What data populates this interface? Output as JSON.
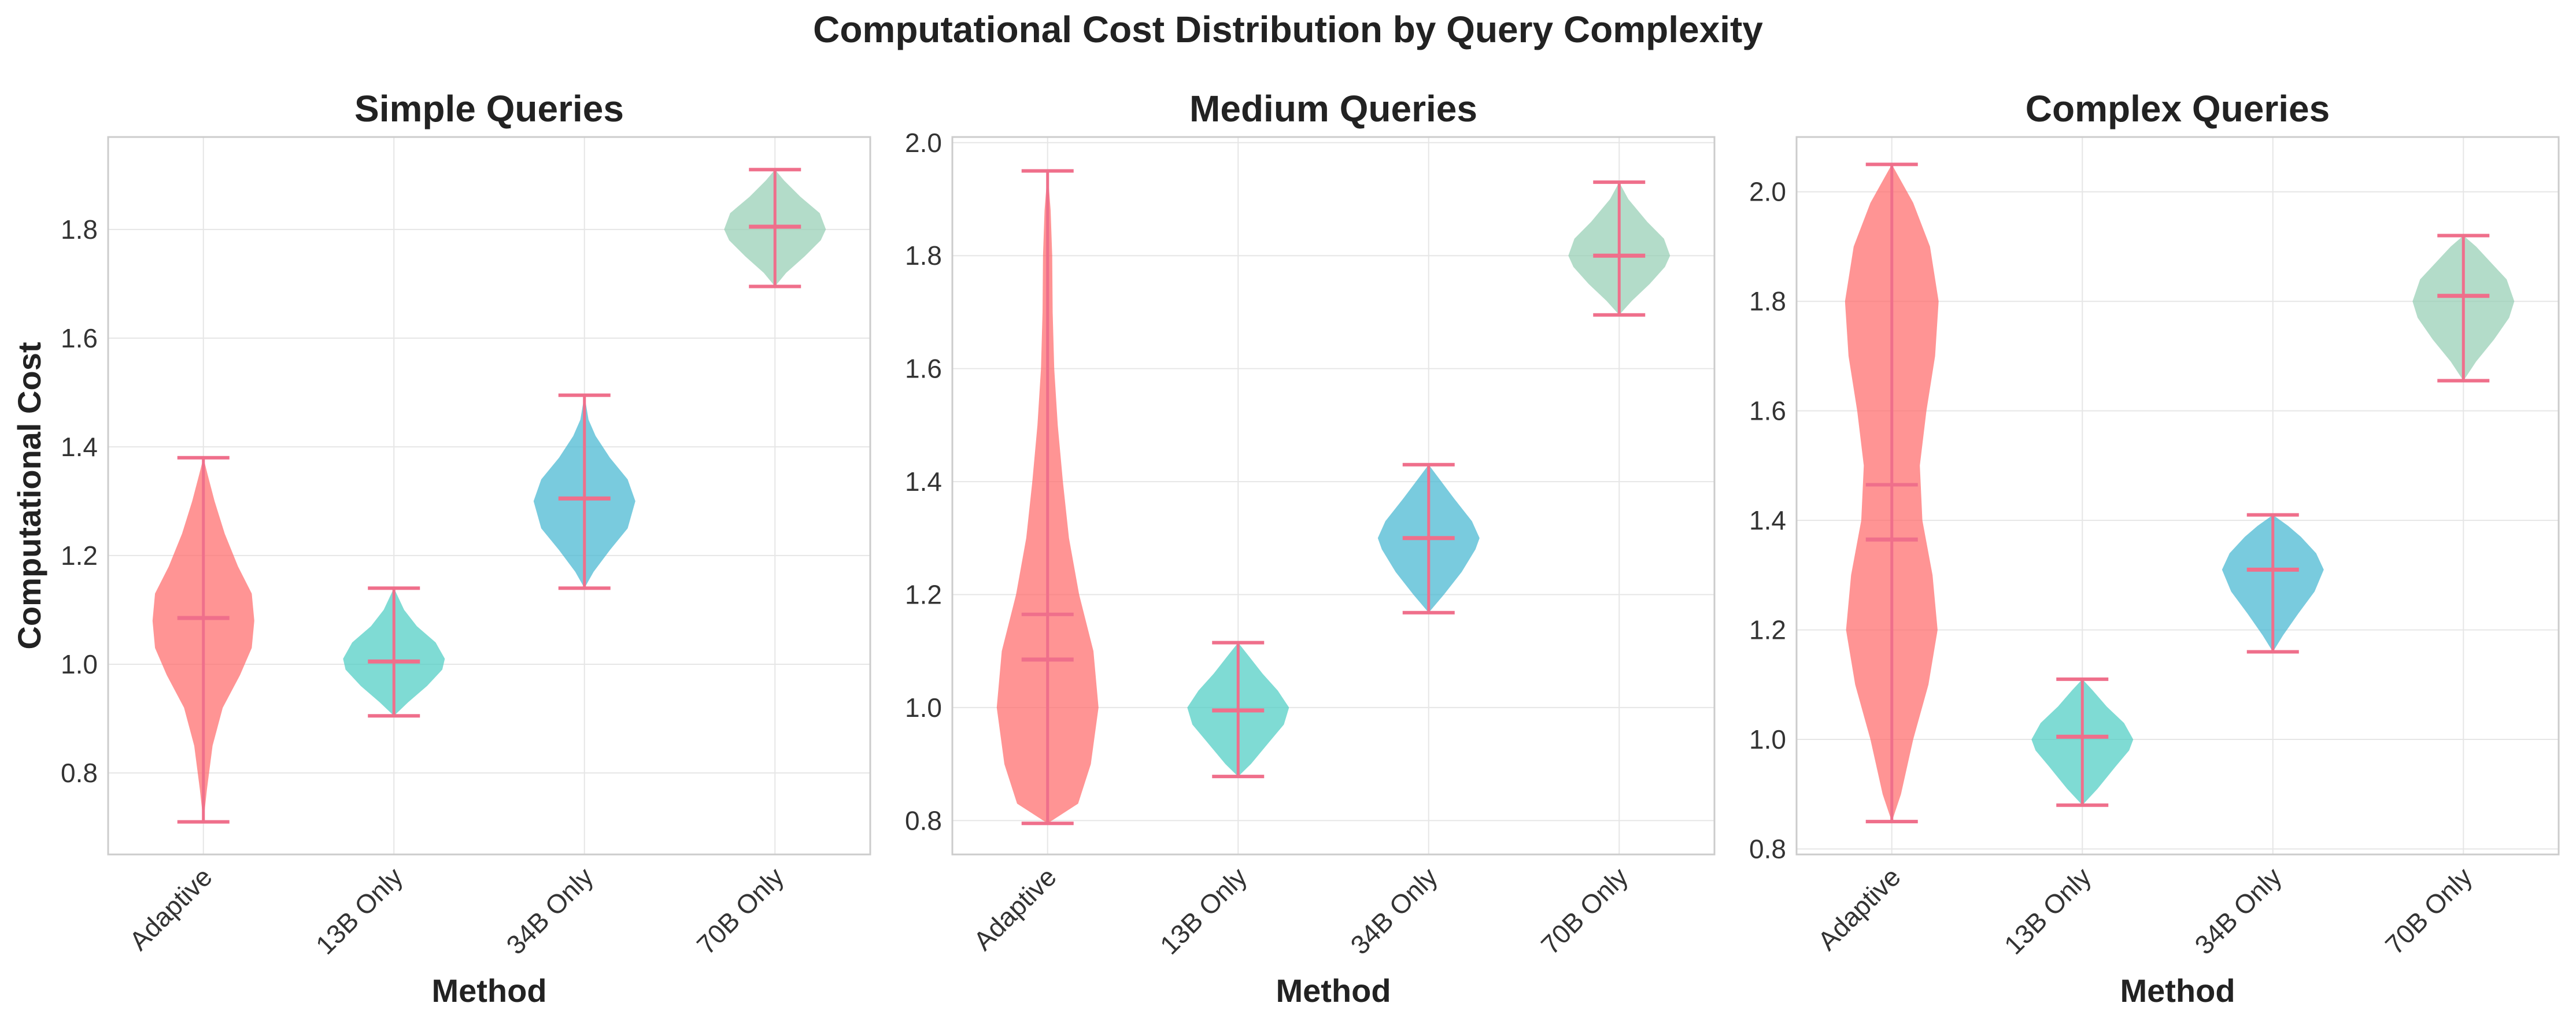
{
  "figure_title": "Computational Cost Distribution by Query Complexity",
  "colors": {
    "Adaptive": "#ff6b6b",
    "13B Only": "#4ecdc4",
    "34B Only": "#45b7d1",
    "70B Only": "#96ceb4",
    "stats_lines": "#ef6f8b",
    "grid": "#e6e6e6",
    "axes_frame": "#cccccc"
  },
  "chart_data": [
    {
      "type": "violin",
      "title": "Simple Queries",
      "xlabel": "Method",
      "ylabel": "Computational Cost",
      "categories": [
        "Adaptive",
        "13B Only",
        "34B Only",
        "70B Only"
      ],
      "ylim": [
        0.65,
        1.97
      ],
      "yticks": [
        0.8,
        1.0,
        1.2,
        1.4,
        1.6,
        1.8
      ],
      "ytick_labels": [
        "0.8",
        "1.0",
        "1.2",
        "1.4",
        "1.6",
        "1.8"
      ],
      "grid": true,
      "show_medians": true,
      "show_means": false,
      "violins": [
        {
          "category": "Adaptive",
          "min": 0.71,
          "max": 1.38,
          "median": 1.085,
          "density": [
            [
              0.71,
              0.0
            ],
            [
              0.77,
              0.07
            ],
            [
              0.85,
              0.18
            ],
            [
              0.92,
              0.38
            ],
            [
              0.98,
              0.72
            ],
            [
              1.03,
              0.95
            ],
            [
              1.08,
              1.0
            ],
            [
              1.13,
              0.95
            ],
            [
              1.18,
              0.68
            ],
            [
              1.24,
              0.42
            ],
            [
              1.3,
              0.22
            ],
            [
              1.35,
              0.08
            ],
            [
              1.38,
              0.0
            ]
          ]
        },
        {
          "category": "13B Only",
          "min": 0.905,
          "max": 1.14,
          "median": 1.005,
          "density": [
            [
              0.905,
              0.0
            ],
            [
              0.93,
              0.28
            ],
            [
              0.96,
              0.65
            ],
            [
              0.99,
              0.95
            ],
            [
              1.01,
              1.0
            ],
            [
              1.04,
              0.82
            ],
            [
              1.07,
              0.45
            ],
            [
              1.1,
              0.2
            ],
            [
              1.14,
              0.0
            ]
          ]
        },
        {
          "category": "34B Only",
          "min": 1.14,
          "max": 1.495,
          "median": 1.305,
          "density": [
            [
              1.14,
              0.0
            ],
            [
              1.17,
              0.18
            ],
            [
              1.21,
              0.5
            ],
            [
              1.25,
              0.85
            ],
            [
              1.3,
              1.0
            ],
            [
              1.34,
              0.85
            ],
            [
              1.38,
              0.5
            ],
            [
              1.42,
              0.22
            ],
            [
              1.45,
              0.08
            ],
            [
              1.495,
              0.0
            ]
          ]
        },
        {
          "category": "70B Only",
          "min": 1.695,
          "max": 1.91,
          "median": 1.805,
          "density": [
            [
              1.695,
              0.0
            ],
            [
              1.72,
              0.22
            ],
            [
              1.75,
              0.58
            ],
            [
              1.78,
              0.9
            ],
            [
              1.8,
              1.0
            ],
            [
              1.83,
              0.88
            ],
            [
              1.86,
              0.5
            ],
            [
              1.89,
              0.18
            ],
            [
              1.91,
              0.0
            ]
          ]
        }
      ]
    },
    {
      "type": "violin",
      "title": "Medium Queries",
      "xlabel": "Method",
      "ylabel": "",
      "categories": [
        "Adaptive",
        "13B Only",
        "34B Only",
        "70B Only"
      ],
      "ylim": [
        0.74,
        2.01
      ],
      "yticks": [
        0.8,
        1.0,
        1.2,
        1.4,
        1.6,
        1.8,
        2.0
      ],
      "ytick_labels": [
        "0.8",
        "1.0",
        "1.2",
        "1.4",
        "1.6",
        "1.8",
        "2.0"
      ],
      "grid": true,
      "show_medians": true,
      "show_means": true,
      "violins": [
        {
          "category": "Adaptive",
          "min": 0.795,
          "max": 1.95,
          "median": 1.085,
          "mean": 1.165,
          "density": [
            [
              0.795,
              0.0
            ],
            [
              0.83,
              0.6
            ],
            [
              0.9,
              0.85
            ],
            [
              1.0,
              1.0
            ],
            [
              1.1,
              0.9
            ],
            [
              1.2,
              0.62
            ],
            [
              1.3,
              0.42
            ],
            [
              1.4,
              0.3
            ],
            [
              1.5,
              0.2
            ],
            [
              1.6,
              0.13
            ],
            [
              1.7,
              0.1
            ],
            [
              1.8,
              0.09
            ],
            [
              1.88,
              0.06
            ],
            [
              1.95,
              0.0
            ]
          ]
        },
        {
          "category": "13B Only",
          "min": 0.878,
          "max": 1.115,
          "median": 0.995,
          "density": [
            [
              0.878,
              0.0
            ],
            [
              0.9,
              0.25
            ],
            [
              0.94,
              0.62
            ],
            [
              0.97,
              0.9
            ],
            [
              1.0,
              1.0
            ],
            [
              1.03,
              0.78
            ],
            [
              1.06,
              0.48
            ],
            [
              1.09,
              0.22
            ],
            [
              1.115,
              0.0
            ]
          ]
        },
        {
          "category": "34B Only",
          "min": 1.168,
          "max": 1.43,
          "median": 1.3,
          "density": [
            [
              1.168,
              0.0
            ],
            [
              1.2,
              0.3
            ],
            [
              1.24,
              0.65
            ],
            [
              1.28,
              0.92
            ],
            [
              1.3,
              1.0
            ],
            [
              1.33,
              0.85
            ],
            [
              1.37,
              0.5
            ],
            [
              1.4,
              0.25
            ],
            [
              1.43,
              0.0
            ]
          ]
        },
        {
          "category": "70B Only",
          "min": 1.695,
          "max": 1.93,
          "median": 1.8,
          "density": [
            [
              1.695,
              0.0
            ],
            [
              1.72,
              0.25
            ],
            [
              1.75,
              0.6
            ],
            [
              1.78,
              0.9
            ],
            [
              1.8,
              1.0
            ],
            [
              1.83,
              0.88
            ],
            [
              1.86,
              0.55
            ],
            [
              1.9,
              0.18
            ],
            [
              1.93,
              0.0
            ]
          ]
        }
      ]
    },
    {
      "type": "violin",
      "title": "Complex Queries",
      "xlabel": "Method",
      "ylabel": "",
      "categories": [
        "Adaptive",
        "13B Only",
        "34B Only",
        "70B Only"
      ],
      "ylim": [
        0.79,
        2.1
      ],
      "yticks": [
        0.8,
        1.0,
        1.2,
        1.4,
        1.6,
        1.8,
        2.0
      ],
      "ytick_labels": [
        "0.8",
        "1.0",
        "1.2",
        "1.4",
        "1.6",
        "1.8",
        "2.0"
      ],
      "grid": true,
      "show_medians": true,
      "show_means": true,
      "violins": [
        {
          "category": "Adaptive",
          "min": 0.85,
          "max": 2.05,
          "median": 1.365,
          "mean": 1.465,
          "density": [
            [
              0.85,
              0.0
            ],
            [
              0.9,
              0.18
            ],
            [
              1.0,
              0.42
            ],
            [
              1.1,
              0.72
            ],
            [
              1.2,
              0.9
            ],
            [
              1.3,
              0.8
            ],
            [
              1.4,
              0.6
            ],
            [
              1.5,
              0.55
            ],
            [
              1.6,
              0.68
            ],
            [
              1.7,
              0.85
            ],
            [
              1.8,
              0.92
            ],
            [
              1.9,
              0.75
            ],
            [
              1.98,
              0.42
            ],
            [
              2.05,
              0.0
            ]
          ]
        },
        {
          "category": "13B Only",
          "min": 0.88,
          "max": 1.11,
          "median": 1.005,
          "density": [
            [
              0.88,
              0.0
            ],
            [
              0.91,
              0.3
            ],
            [
              0.95,
              0.65
            ],
            [
              0.98,
              0.92
            ],
            [
              1.0,
              1.0
            ],
            [
              1.03,
              0.82
            ],
            [
              1.06,
              0.48
            ],
            [
              1.09,
              0.2
            ],
            [
              1.11,
              0.0
            ]
          ]
        },
        {
          "category": "34B Only",
          "min": 1.16,
          "max": 1.41,
          "median": 1.31,
          "density": [
            [
              1.16,
              0.0
            ],
            [
              1.19,
              0.2
            ],
            [
              1.23,
              0.5
            ],
            [
              1.27,
              0.82
            ],
            [
              1.31,
              1.0
            ],
            [
              1.34,
              0.85
            ],
            [
              1.37,
              0.55
            ],
            [
              1.39,
              0.3
            ],
            [
              1.41,
              0.0
            ]
          ]
        },
        {
          "category": "70B Only",
          "min": 1.655,
          "max": 1.92,
          "median": 1.81,
          "density": [
            [
              1.655,
              0.0
            ],
            [
              1.69,
              0.25
            ],
            [
              1.73,
              0.6
            ],
            [
              1.77,
              0.9
            ],
            [
              1.8,
              1.0
            ],
            [
              1.84,
              0.85
            ],
            [
              1.87,
              0.55
            ],
            [
              1.9,
              0.25
            ],
            [
              1.92,
              0.0
            ]
          ]
        }
      ]
    }
  ]
}
